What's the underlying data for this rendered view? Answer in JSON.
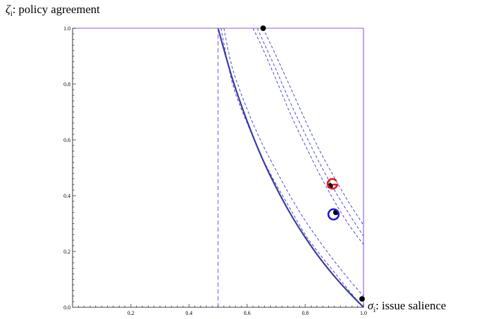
{
  "chart_data": {
    "type": "line",
    "xlabel_symbol": "σ",
    "xlabel_sub": "i",
    "xlabel_text": ": issue salience",
    "ylabel_symbol": "ζ",
    "ylabel_sub": "i",
    "ylabel_text": ": policy agreement",
    "xlim": [
      0,
      1
    ],
    "ylim": [
      0,
      1
    ],
    "x_ticks": [
      {
        "value": 0.2,
        "label": "0.2"
      },
      {
        "value": 0.4,
        "label": "0.4"
      },
      {
        "value": 0.6,
        "label": "0.6"
      },
      {
        "value": 0.8,
        "label": "0.8"
      },
      {
        "value": 1.0,
        "label": "1.0"
      }
    ],
    "y_ticks": [
      {
        "value": 0.0,
        "label": "0.0"
      },
      {
        "value": 0.2,
        "label": "0.2"
      },
      {
        "value": 0.4,
        "label": "0.4"
      },
      {
        "value": 0.6,
        "label": "0.6"
      },
      {
        "value": 0.8,
        "label": "0.8"
      },
      {
        "value": 1.0,
        "label": "1.0"
      }
    ],
    "grid": false,
    "series": [
      {
        "style": "solid-thick",
        "color": "#3a3aa0",
        "points": [
          [
            0.5,
            1.0
          ],
          [
            0.55,
            0.817
          ],
          [
            0.6,
            0.667
          ],
          [
            0.65,
            0.538
          ],
          [
            0.7,
            0.429
          ],
          [
            0.75,
            0.333
          ],
          [
            0.8,
            0.25
          ],
          [
            0.85,
            0.176
          ],
          [
            0.9,
            0.111
          ],
          [
            0.95,
            0.053
          ],
          [
            1.0,
            0.0
          ]
        ]
      },
      {
        "style": "dashed",
        "color": "#3333cc",
        "points": [
          [
            0.51,
            1.0
          ],
          [
            0.55,
            0.8
          ],
          [
            0.6,
            0.66
          ],
          [
            0.65,
            0.54
          ],
          [
            0.7,
            0.44
          ],
          [
            0.75,
            0.35
          ],
          [
            0.8,
            0.26
          ],
          [
            0.85,
            0.19
          ],
          [
            0.9,
            0.125
          ],
          [
            0.95,
            0.06
          ],
          [
            0.99,
            0.01
          ]
        ]
      },
      {
        "style": "dashed",
        "color": "#3333cc",
        "points": [
          [
            0.52,
            1.0
          ],
          [
            0.55,
            0.855
          ],
          [
            0.6,
            0.71
          ],
          [
            0.65,
            0.59
          ],
          [
            0.7,
            0.49
          ],
          [
            0.75,
            0.395
          ],
          [
            0.8,
            0.31
          ],
          [
            0.85,
            0.235
          ],
          [
            0.9,
            0.165
          ],
          [
            0.95,
            0.1
          ],
          [
            1.0,
            0.04
          ]
        ]
      },
      {
        "style": "dashed",
        "color": "#3333cc",
        "points": [
          [
            0.62,
            1.0
          ],
          [
            0.65,
            0.935
          ],
          [
            0.7,
            0.815
          ],
          [
            0.75,
            0.69
          ],
          [
            0.8,
            0.58
          ],
          [
            0.85,
            0.475
          ],
          [
            0.9,
            0.38
          ],
          [
            0.95,
            0.295
          ],
          [
            1.0,
            0.225
          ]
        ]
      },
      {
        "style": "dashed",
        "color": "#3333cc",
        "points": [
          [
            0.635,
            1.0
          ],
          [
            0.65,
            0.965
          ],
          [
            0.7,
            0.85
          ],
          [
            0.75,
            0.73
          ],
          [
            0.8,
            0.62
          ],
          [
            0.85,
            0.515
          ],
          [
            0.9,
            0.42
          ],
          [
            0.95,
            0.335
          ],
          [
            1.0,
            0.255
          ]
        ]
      },
      {
        "style": "dashed",
        "color": "#3333cc",
        "points": [
          [
            0.655,
            1.0
          ],
          [
            0.7,
            0.9
          ],
          [
            0.75,
            0.785
          ],
          [
            0.8,
            0.67
          ],
          [
            0.85,
            0.56
          ],
          [
            0.9,
            0.465
          ],
          [
            0.95,
            0.375
          ],
          [
            1.0,
            0.295
          ]
        ]
      }
    ],
    "vline": {
      "x": 0.5,
      "style": "dashed",
      "color": "#7b4fe0"
    },
    "frame_lines": [
      {
        "from": [
          0.0,
          1.0
        ],
        "to": [
          1.0,
          1.0
        ],
        "color": "#8b55e6"
      },
      {
        "from": [
          1.0,
          0.0
        ],
        "to": [
          1.0,
          1.0
        ],
        "color": "#8b55e6"
      }
    ],
    "points": [
      {
        "x": 0.655,
        "y": 1.0,
        "color": "#000000"
      },
      {
        "x": 0.995,
        "y": 0.03,
        "color": "#000000"
      },
      {
        "x": 0.885,
        "y": 0.435,
        "color": "#000000"
      },
      {
        "x": 0.905,
        "y": 0.34,
        "color": "#000000"
      }
    ],
    "markers": [
      {
        "x": 0.893,
        "y": 0.443,
        "shape": "spiral",
        "color": "#e31a1c"
      },
      {
        "x": 0.897,
        "y": 0.333,
        "shape": "ring",
        "color": "#1c1ccc"
      }
    ]
  }
}
